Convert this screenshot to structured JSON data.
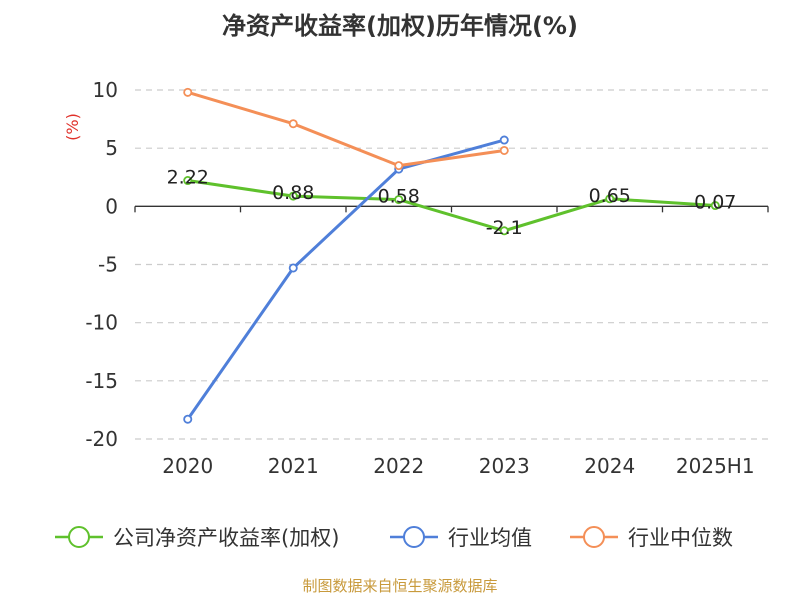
{
  "chart_data": {
    "type": "line",
    "title": "净资产收益率(加权)历年情况(%)",
    "unit_label": "(%)",
    "categories": [
      "2020",
      "2021",
      "2022",
      "2023",
      "2024",
      "2025H1"
    ],
    "yticks": [
      10,
      5,
      0,
      -5,
      -10,
      -15,
      -20
    ],
    "ylim": [
      -20,
      10
    ],
    "grid": true,
    "legend_position": "bottom",
    "series": [
      {
        "name": "公司净资产收益率(加权)",
        "color": "#5fc12c",
        "values": [
          2.22,
          0.88,
          0.58,
          -2.1,
          0.65,
          0.07
        ],
        "labels": [
          "2.22",
          "0.88",
          "0.58",
          "-2.1",
          "0.65",
          "0.07"
        ]
      },
      {
        "name": "行业均值",
        "color": "#4f7fd9",
        "values": [
          -18.3,
          -5.3,
          3.2,
          5.7,
          null,
          null
        ]
      },
      {
        "name": "行业中位数",
        "color": "#f48f57",
        "values": [
          9.8,
          7.1,
          3.5,
          4.8,
          null,
          null
        ]
      }
    ],
    "source": "制图数据来自恒生聚源数据库"
  }
}
